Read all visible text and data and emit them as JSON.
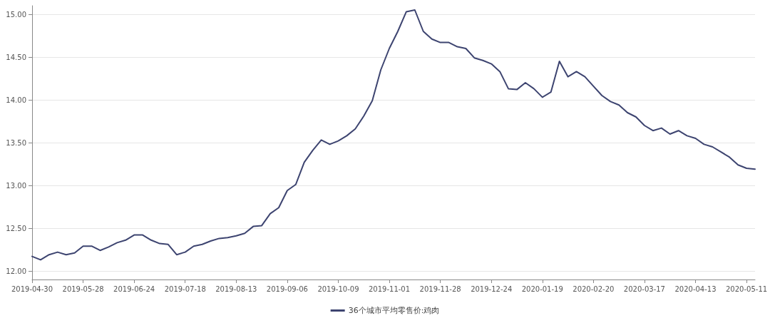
{
  "chart_data": {
    "type": "line",
    "categories": [
      "2019-04-30",
      null,
      null,
      null,
      null,
      null,
      "2019-05-28",
      null,
      null,
      null,
      null,
      null,
      "2019-06-24",
      null,
      null,
      null,
      null,
      null,
      "2019-07-18",
      null,
      null,
      null,
      null,
      null,
      "2019-08-13",
      null,
      null,
      null,
      null,
      null,
      "2019-09-06",
      null,
      null,
      null,
      null,
      null,
      "2019-10-09",
      null,
      null,
      null,
      null,
      null,
      "2019-11-01",
      null,
      null,
      null,
      null,
      null,
      "2019-11-28",
      null,
      null,
      null,
      null,
      null,
      "2019-12-24",
      null,
      null,
      null,
      null,
      null,
      "2020-01-19",
      null,
      null,
      null,
      null,
      null,
      "2020-02-20",
      null,
      null,
      null,
      null,
      null,
      "2020-03-17",
      null,
      null,
      null,
      null,
      null,
      "2020-04-13",
      null,
      null,
      null,
      null,
      null,
      "2020-05-11",
      null
    ],
    "series": [
      {
        "name": "36个城市平均零售价:鸡肉",
        "color": "#3d4470",
        "values": [
          12.17,
          12.13,
          12.19,
          12.22,
          12.19,
          12.21,
          12.29,
          12.29,
          12.24,
          12.28,
          12.33,
          12.36,
          12.42,
          12.42,
          12.36,
          12.32,
          12.31,
          12.19,
          12.22,
          12.29,
          12.31,
          12.35,
          12.38,
          12.39,
          12.41,
          12.44,
          12.52,
          12.53,
          12.67,
          12.74,
          12.94,
          13.01,
          13.27,
          13.41,
          13.53,
          13.48,
          13.52,
          13.58,
          13.66,
          13.81,
          13.99,
          14.35,
          14.6,
          14.8,
          15.03,
          15.05,
          14.8,
          14.71,
          14.67,
          14.67,
          14.62,
          14.6,
          14.49,
          14.46,
          14.42,
          14.33,
          14.13,
          14.12,
          14.2,
          14.13,
          14.03,
          14.09,
          14.45,
          14.27,
          14.33,
          14.27,
          14.16,
          14.05,
          13.98,
          13.94,
          13.85,
          13.8,
          13.7,
          13.64,
          13.67,
          13.6,
          13.64,
          13.58,
          13.55,
          13.48,
          13.45,
          13.39,
          13.33,
          13.24,
          13.2,
          13.19
        ]
      }
    ],
    "ylim": [
      11.9,
      15.1
    ],
    "yticks": [
      {
        "value": 12,
        "label": "12.00"
      },
      {
        "value": 12.5,
        "label": "12.50"
      },
      {
        "value": 13,
        "label": "13.00"
      },
      {
        "value": 13.5,
        "label": "13.50"
      },
      {
        "value": 14,
        "label": "14.00"
      },
      {
        "value": 14.5,
        "label": "14.50"
      },
      {
        "value": 15,
        "label": "15.00"
      }
    ],
    "grid": "y",
    "legend": "bottom",
    "marker": "none",
    "line_style": "solid"
  }
}
